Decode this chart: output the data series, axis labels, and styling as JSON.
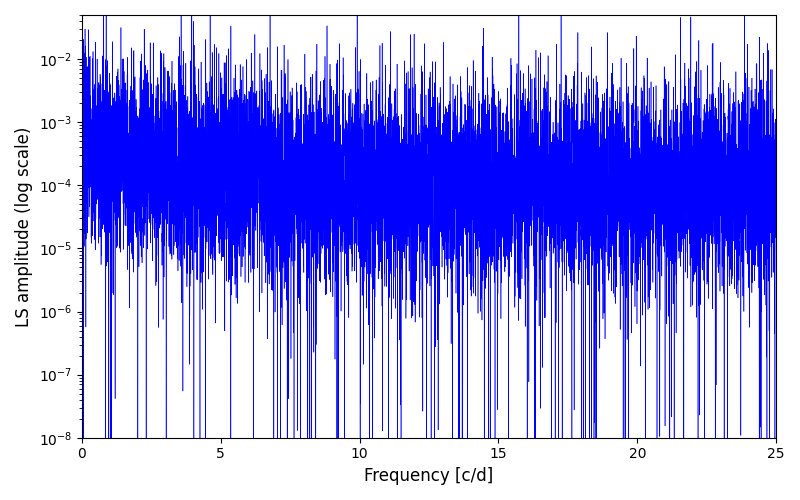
{
  "xlabel": "Frequency [c/d]",
  "ylabel": "LS amplitude (log scale)",
  "xlim": [
    0,
    25
  ],
  "ylim": [
    1e-08,
    0.05
  ],
  "line_color": "blue",
  "background_color": "white",
  "figsize": [
    8.0,
    5.0
  ],
  "dpi": 100,
  "num_points": 10000,
  "seed": 7,
  "peak_amplitude": 0.013,
  "base_amplitude": 0.0001,
  "decay_rate": 0.25,
  "noise_std_log": 0.8,
  "n_deep_nulls": 120,
  "n_high_peaks": 40
}
